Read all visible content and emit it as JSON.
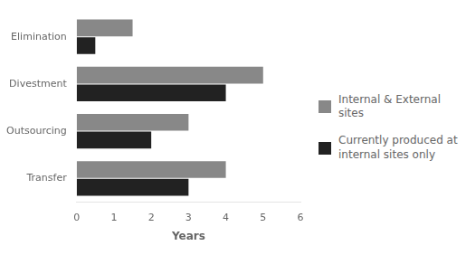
{
  "chart_data": {
    "type": "bar",
    "orientation": "horizontal",
    "categories": [
      "Transfer",
      "Outsourcing",
      "Divestment",
      "Elimination"
    ],
    "series": [
      {
        "name": "Internal & External sites",
        "color": "#888888",
        "values": [
          4.0,
          3.0,
          5.0,
          1.5
        ]
      },
      {
        "name": "Currently produced at\ninternal sites only",
        "color": "#222222",
        "values": [
          3.0,
          2.0,
          4.0,
          0.5
        ]
      }
    ],
    "xlabel": "Years",
    "xlim": [
      0,
      6
    ],
    "xticks": [
      0,
      1,
      2,
      3,
      4,
      5,
      6
    ],
    "grid": false,
    "legend": "right"
  }
}
